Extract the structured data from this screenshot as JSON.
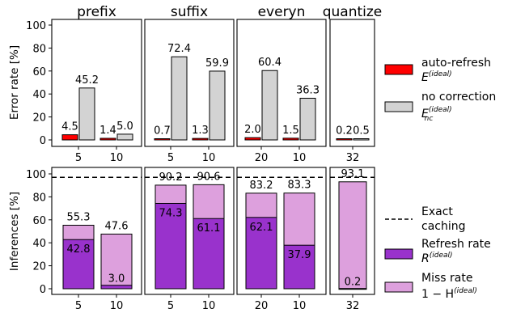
{
  "chart_data": [
    {
      "type": "bar",
      "ylabel": "Error rate [%]",
      "ylim": [
        0,
        100
      ],
      "yticks": [
        0,
        20,
        40,
        60,
        80,
        100
      ],
      "panels": [
        {
          "title": "prefix",
          "groups": [
            {
              "x": "5",
              "values": [
                4.5,
                45.2
              ]
            },
            {
              "x": "10",
              "values": [
                1.4,
                5.0
              ]
            }
          ]
        },
        {
          "title": "suffix",
          "groups": [
            {
              "x": "5",
              "values": [
                0.7,
                72.4
              ]
            },
            {
              "x": "10",
              "values": [
                1.3,
                59.9
              ]
            }
          ]
        },
        {
          "title": "everyn",
          "groups": [
            {
              "x": "20",
              "values": [
                2.0,
                60.4
              ]
            },
            {
              "x": "10",
              "values": [
                1.5,
                36.3
              ]
            }
          ]
        },
        {
          "title": "quantize",
          "groups": [
            {
              "x": "32",
              "values": [
                0.2,
                0.5
              ]
            }
          ]
        }
      ],
      "labels": {
        "prefix": [
          [
            "4.5",
            "45.2"
          ],
          [
            "1.4",
            "5.0"
          ]
        ],
        "suffix": [
          [
            "0.7",
            "72.4"
          ],
          [
            "1.3",
            "59.9"
          ]
        ],
        "everyn": [
          [
            "2.0",
            "60.4"
          ],
          [
            "1.5",
            "36.3"
          ]
        ],
        "quantize": [
          [
            "0.2",
            "0.5"
          ]
        ]
      },
      "series_colors": [
        "#ff0000",
        "#d3d3d3"
      ]
    },
    {
      "type": "bar",
      "ylabel": "Inferences [%]",
      "ylim": [
        0,
        100
      ],
      "yticks": [
        0,
        20,
        40,
        60,
        80,
        100
      ],
      "reference_line": 97,
      "panels": [
        {
          "groups": [
            {
              "x": "5",
              "refresh": 42.8,
              "total": 55.3
            },
            {
              "x": "10",
              "refresh": 3.0,
              "total": 47.6
            }
          ]
        },
        {
          "groups": [
            {
              "x": "5",
              "refresh": 74.3,
              "total": 90.2
            },
            {
              "x": "10",
              "refresh": 61.1,
              "total": 90.6
            }
          ]
        },
        {
          "groups": [
            {
              "x": "20",
              "refresh": 62.1,
              "total": 83.2
            },
            {
              "x": "10",
              "refresh": 37.9,
              "total": 83.3
            }
          ]
        },
        {
          "groups": [
            {
              "x": "32",
              "refresh": 0.2,
              "total": 93.1
            }
          ]
        }
      ],
      "labels": [
        [
          [
            "42.8",
            "55.3"
          ],
          [
            "3.0",
            "47.6"
          ]
        ],
        [
          [
            "74.3",
            "90.2"
          ],
          [
            "61.1",
            "90.6"
          ]
        ],
        [
          [
            "62.1",
            "83.2"
          ],
          [
            "37.9",
            "83.3"
          ]
        ],
        [
          [
            "0.2",
            "93.1"
          ]
        ]
      ],
      "series_colors": [
        "#9932cc",
        "#dda0dd"
      ]
    }
  ],
  "legend": {
    "auto_refresh": "auto-refresh",
    "auto_refresh_sub": "E",
    "auto_refresh_sup": "(ideal)",
    "no_correction": "no correction",
    "no_correction_sub": "E",
    "no_correction_subnc": "nc",
    "no_correction_sup": "(ideal)",
    "exact_l1": "Exact",
    "exact_l2": "caching",
    "refresh_l1": "Refresh rate",
    "refresh_sub": "R",
    "refresh_sup": "(ideal)",
    "miss_l1": "Miss rate",
    "miss_sub_prefix": "1 − H",
    "miss_sup": "(ideal)"
  }
}
